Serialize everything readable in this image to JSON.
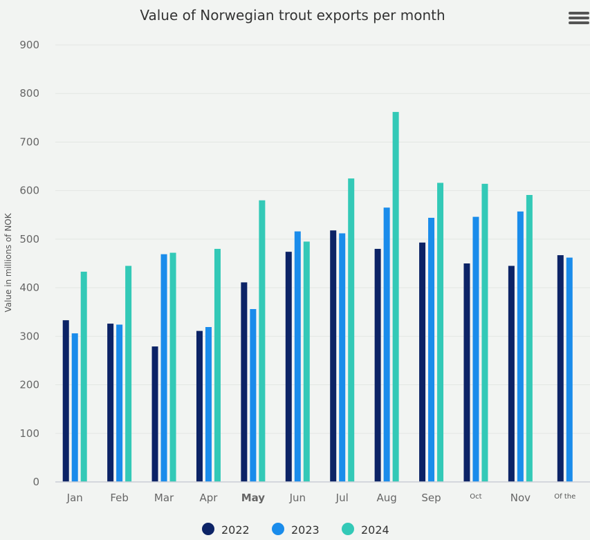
{
  "chart_data": {
    "type": "bar",
    "title": "Value of Norwegian trout exports per month",
    "ylabel": "Value in millions of NOK",
    "xlabel": "",
    "ylim": [
      0,
      900
    ],
    "yticks": [
      0,
      100,
      200,
      300,
      400,
      500,
      600,
      700,
      800,
      900
    ],
    "grid": true,
    "legend_position": "bottom-center",
    "categories": [
      "Jan",
      "Feb",
      "Mar",
      "Apr",
      "May",
      "Jun",
      "Jul",
      "Aug",
      "Sep",
      "Oct",
      "Nov",
      "Of the"
    ],
    "series": [
      {
        "name": "2022",
        "color": "#0c2366",
        "values": [
          333,
          326,
          279,
          311,
          411,
          474,
          518,
          480,
          493,
          450,
          445,
          467
        ]
      },
      {
        "name": "2023",
        "color": "#1a8ceb",
        "values": [
          306,
          324,
          469,
          319,
          356,
          516,
          512,
          565,
          544,
          546,
          557,
          462
        ]
      },
      {
        "name": "2024",
        "color": "#33c9b7",
        "values": [
          433,
          445,
          472,
          480,
          580,
          495,
          625,
          762,
          616,
          614,
          591,
          null
        ]
      }
    ]
  },
  "menu": {
    "icon": "hamburger-menu-icon"
  }
}
